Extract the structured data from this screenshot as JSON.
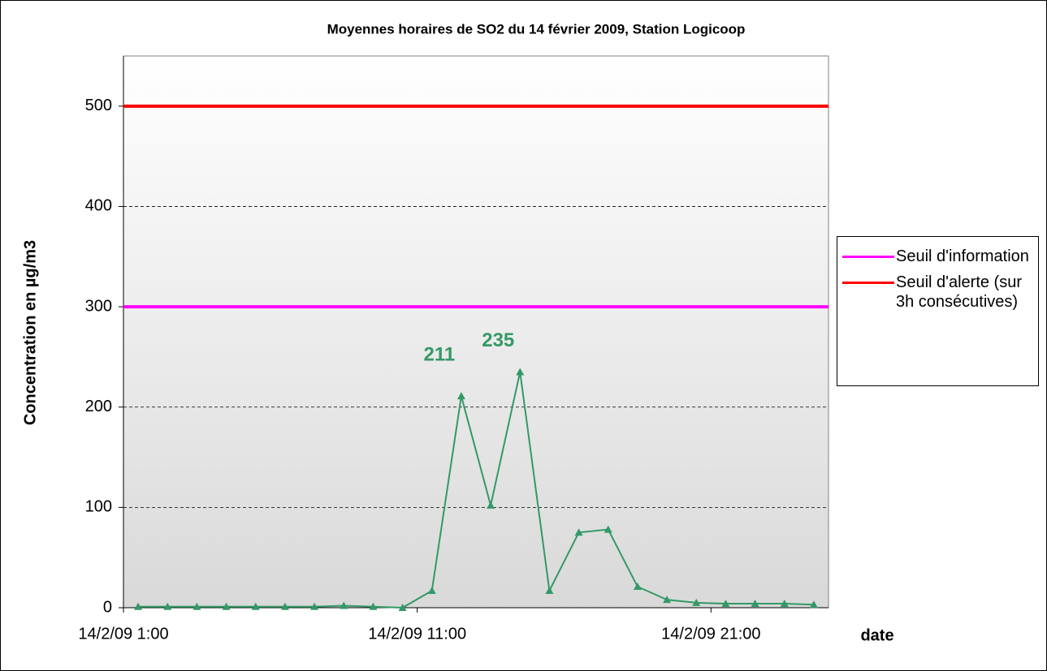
{
  "chart_data": {
    "type": "line",
    "title": "Moyennes horaires de SO2 du 14 février 2009, Station Logicoop",
    "y_label": "Concentration en µg/m3",
    "x_label": "date",
    "x": [
      1.5,
      2.5,
      3.5,
      4.5,
      5.5,
      6.5,
      7.5,
      8.5,
      9.5,
      10.5,
      11.5,
      12.5,
      13.5,
      14.5,
      15.5,
      16.5,
      17.5,
      18.5,
      19.5,
      20.5,
      21.5,
      22.5,
      23.5,
      24.5
    ],
    "values": [
      1,
      1,
      1,
      1,
      1,
      1,
      1,
      2,
      1,
      0,
      17,
      211,
      102,
      235,
      17,
      75,
      78,
      21,
      8,
      5,
      4,
      4,
      4,
      3
    ],
    "value_labels": [
      null,
      null,
      null,
      null,
      null,
      null,
      null,
      null,
      null,
      null,
      null,
      "211",
      null,
      "235",
      null,
      null,
      null,
      null,
      null,
      null,
      null,
      null,
      null,
      null
    ],
    "color": "#339966",
    "thresholds": [
      {
        "name": "Seuil d'information",
        "color": "#ff00ff",
        "value": 300
      },
      {
        "name": "Seuil d'alerte (sur 3h consécutives)",
        "color": "#ff0000",
        "value": 500
      }
    ],
    "xlim": [
      1,
      25
    ],
    "xticks": [
      {
        "value": 1,
        "label": "14/2/09 1:00"
      },
      {
        "value": 11,
        "label": "14/2/09 11:00"
      },
      {
        "value": 21,
        "label": "14/2/09 21:00"
      }
    ],
    "ylim": [
      0,
      550
    ],
    "yticks": [
      0,
      100,
      200,
      300,
      400,
      500
    ],
    "grid": true
  }
}
